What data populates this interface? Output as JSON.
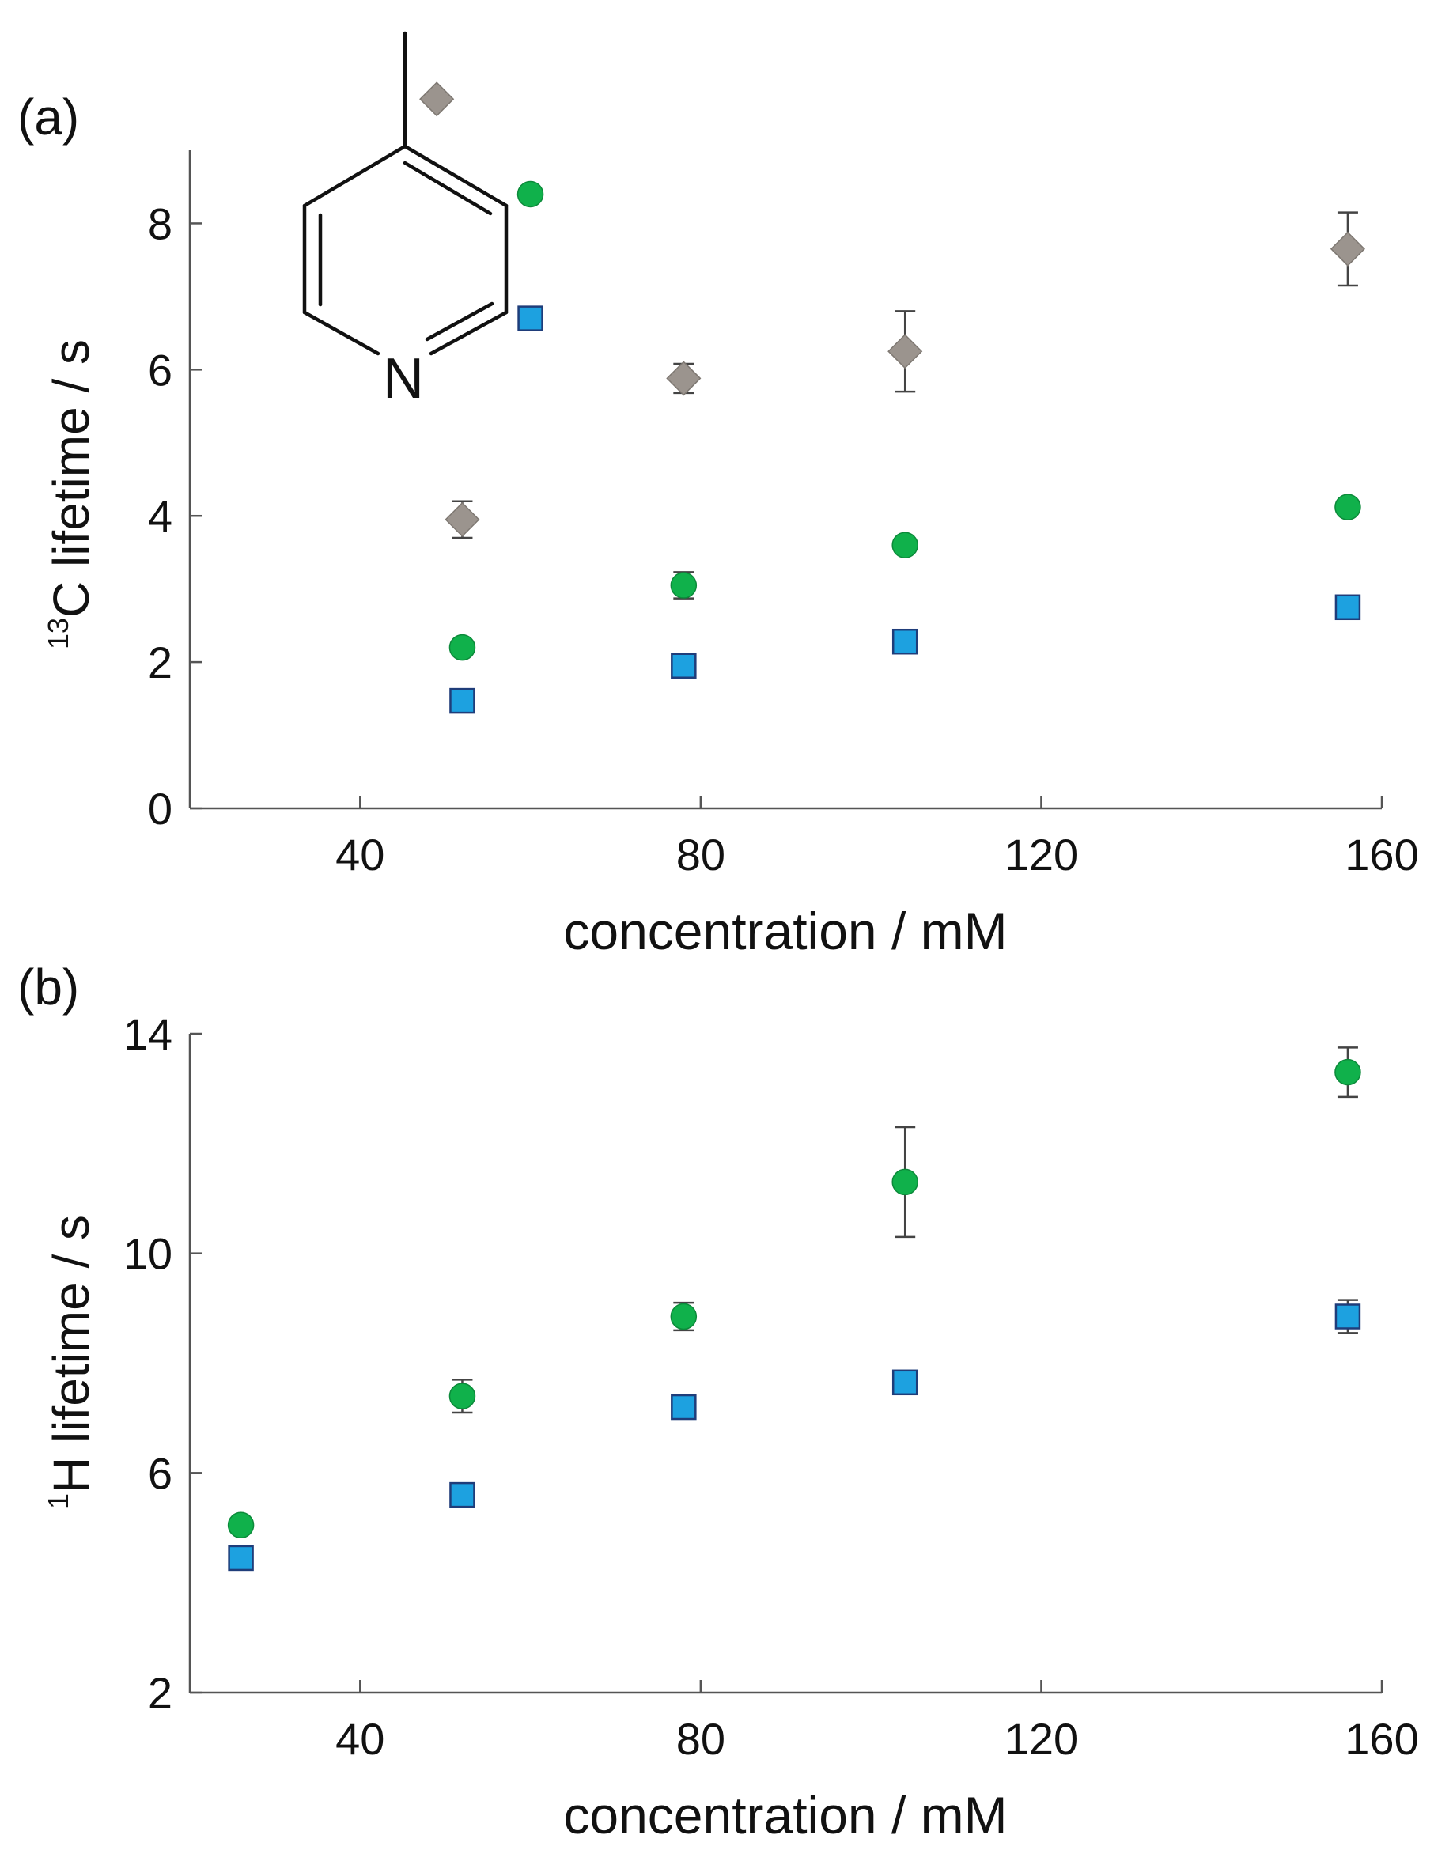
{
  "chart_data": [
    {
      "type": "scatter",
      "panel_label": "(a)",
      "title": "",
      "xlabel": "concentration / mM",
      "ylabel_sup": "13",
      "ylabel_main": "C lifetime / s",
      "xlim": [
        20,
        160
      ],
      "ylim": [
        0,
        9
      ],
      "xticks": [
        40,
        80,
        120,
        160
      ],
      "yticks": [
        0,
        2,
        4,
        6,
        8
      ],
      "grid": false,
      "legend": "inline markers beside the 4-methylpyridine structure (top-left)",
      "structure_atom_label": "N",
      "series": [
        {
          "name": "gray-diamond",
          "marker": "diamond",
          "color": "#9b948e",
          "x": [
            52,
            78,
            104,
            156
          ],
          "y": [
            3.95,
            5.88,
            6.25,
            7.65
          ],
          "err": [
            0.25,
            0.2,
            0.55,
            0.5
          ],
          "legend_x": 49,
          "legend_y": 9.7
        },
        {
          "name": "green-circle",
          "marker": "circle",
          "color": "#10b14b",
          "x": [
            52,
            78,
            104,
            156
          ],
          "y": [
            2.2,
            3.05,
            3.6,
            4.12
          ],
          "err": [
            0.08,
            0.18,
            0.06,
            0.06
          ],
          "legend_x": 60,
          "legend_y": 8.4
        },
        {
          "name": "blue-square",
          "marker": "square",
          "color": "#1da1e0",
          "x": [
            52,
            78,
            104,
            156
          ],
          "y": [
            1.47,
            1.95,
            2.28,
            2.75
          ],
          "err": [
            0.08,
            0.06,
            0.06,
            0.06
          ],
          "legend_x": 60,
          "legend_y": 6.7
        }
      ]
    },
    {
      "type": "scatter",
      "panel_label": "(b)",
      "title": "",
      "xlabel": "concentration / mM",
      "ylabel_sup": "1",
      "ylabel_main": "H lifetime / s",
      "xlim": [
        20,
        160
      ],
      "ylim": [
        2,
        14
      ],
      "xticks": [
        40,
        80,
        120,
        160
      ],
      "yticks": [
        2,
        6,
        10,
        14
      ],
      "grid": false,
      "legend": "none",
      "series": [
        {
          "name": "green-circle",
          "marker": "circle",
          "color": "#10b14b",
          "x": [
            26,
            52,
            78,
            104,
            156
          ],
          "y": [
            5.05,
            7.4,
            8.85,
            11.3,
            13.3
          ],
          "err": [
            0.06,
            0.3,
            0.25,
            1.0,
            0.45
          ]
        },
        {
          "name": "blue-square",
          "marker": "square",
          "color": "#1da1e0",
          "x": [
            26,
            52,
            78,
            104,
            156
          ],
          "y": [
            4.45,
            5.6,
            7.2,
            7.65,
            8.85
          ],
          "err": [
            0.06,
            0.06,
            0.06,
            0.06,
            0.3
          ]
        }
      ]
    }
  ]
}
